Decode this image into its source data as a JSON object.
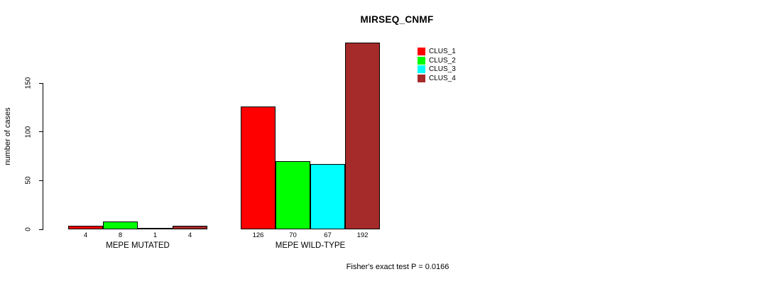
{
  "title": "MIRSEQ_CNMF",
  "footer": "Fisher's exact test P = 0.0166",
  "chart_data": {
    "type": "bar",
    "title": "MIRSEQ_CNMF",
    "xlabel": "",
    "ylabel": "number of cases",
    "categories": [
      "MEPE MUTATED",
      "MEPE WILD-TYPE"
    ],
    "series": [
      {
        "name": "CLUS_1",
        "color": "#ff0000",
        "values": [
          4,
          126
        ]
      },
      {
        "name": "CLUS_2",
        "color": "#00ff00",
        "values": [
          8,
          70
        ]
      },
      {
        "name": "CLUS_3",
        "color": "#00ffff",
        "values": [
          1,
          67
        ]
      },
      {
        "name": "CLUS_4",
        "color": "#a52a2a",
        "values": [
          4,
          192
        ]
      }
    ],
    "yticks": [
      0,
      50,
      100,
      150
    ],
    "ylim": [
      0,
      192
    ],
    "grid": false,
    "legend_position": "top-right",
    "value_labels_under_bars": true,
    "annotation": "Fisher's exact test P = 0.0166"
  }
}
